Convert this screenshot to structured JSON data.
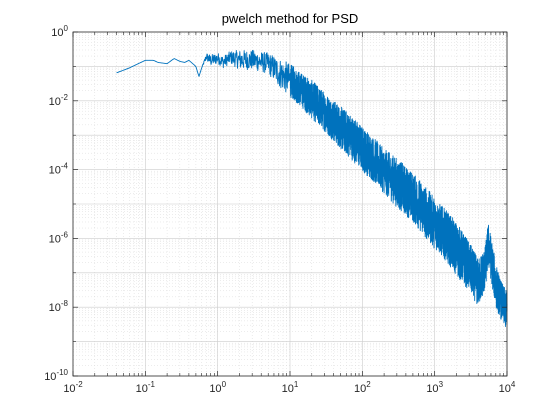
{
  "chart_data": {
    "type": "line",
    "title": "pwelch method for PSD",
    "xlabel": "",
    "ylabel": "",
    "x_scale": "log",
    "y_scale": "log",
    "xlim": [
      0.01,
      10000
    ],
    "ylim": [
      1e-10,
      1
    ],
    "grid": true,
    "minor_grid": true,
    "line_color": "#0072BD",
    "x_ticks": [
      {
        "base": "10",
        "exp": "-2"
      },
      {
        "base": "10",
        "exp": "-1"
      },
      {
        "base": "10",
        "exp": "0"
      },
      {
        "base": "10",
        "exp": "1"
      },
      {
        "base": "10",
        "exp": "2"
      },
      {
        "base": "10",
        "exp": "3"
      },
      {
        "base": "10",
        "exp": "4"
      }
    ],
    "y_ticks": [
      {
        "base": "10",
        "exp": "-10"
      },
      {
        "base": "10",
        "exp": "-8"
      },
      {
        "base": "10",
        "exp": "-6"
      },
      {
        "base": "10",
        "exp": "-4"
      },
      {
        "base": "10",
        "exp": "-2"
      },
      {
        "base": "10",
        "exp": "0"
      }
    ],
    "series": [
      {
        "x": [
          0.04,
          0.06,
          0.08,
          0.1,
          0.13,
          0.15,
          0.2,
          0.25,
          0.3,
          0.35,
          0.4,
          0.5,
          0.55,
          0.6,
          0.7,
          0.8,
          1.0,
          1.2,
          1.5,
          2,
          3,
          5,
          7,
          10,
          15,
          20,
          30,
          50,
          70,
          100,
          150,
          200,
          300,
          500,
          700,
          1000,
          1500,
          2000,
          3000,
          4000,
          5000,
          5500,
          6000,
          7000,
          8000,
          9000,
          10000
        ],
        "y": [
          0.065,
          0.09,
          0.12,
          0.15,
          0.15,
          0.13,
          0.12,
          0.17,
          0.14,
          0.13,
          0.15,
          0.1,
          0.05,
          0.09,
          0.2,
          0.17,
          0.18,
          0.12,
          0.2,
          0.15,
          0.18,
          0.12,
          0.07,
          0.045,
          0.02,
          0.012,
          0.006,
          0.002,
          0.001,
          0.0005,
          0.00022,
          0.00012,
          6e-05,
          2e-05,
          1e-05,
          4e-06,
          1.5e-06,
          7e-07,
          2e-07,
          6e-08,
          2e-07,
          8e-07,
          3e-07,
          4e-08,
          2e-08,
          1e-08,
          8e-09
        ],
        "y_lower": [
          0.065,
          0.09,
          0.12,
          0.15,
          0.15,
          0.13,
          0.12,
          0.17,
          0.14,
          0.13,
          0.15,
          0.1,
          0.05,
          0.09,
          0.15,
          0.1,
          0.12,
          0.09,
          0.12,
          0.08,
          0.08,
          0.06,
          0.025,
          0.013,
          0.006,
          0.003,
          0.0013,
          0.0004,
          0.0002,
          9e-05,
          4e-05,
          2e-05,
          8e-06,
          3e-06,
          1.2e-06,
          5e-07,
          2e-07,
          8e-08,
          3e-08,
          1e-08,
          3e-08,
          1.5e-07,
          6e-08,
          1e-08,
          5e-09,
          3e-09,
          2e-09
        ],
        "y_upper": [
          0.065,
          0.09,
          0.12,
          0.15,
          0.15,
          0.13,
          0.12,
          0.17,
          0.14,
          0.13,
          0.15,
          0.1,
          0.05,
          0.09,
          0.25,
          0.22,
          0.25,
          0.2,
          0.28,
          0.3,
          0.3,
          0.25,
          0.18,
          0.12,
          0.06,
          0.04,
          0.018,
          0.007,
          0.004,
          0.0018,
          0.0008,
          0.0004,
          0.00022,
          8e-05,
          4e-05,
          1.5e-05,
          6e-06,
          3e-06,
          8e-07,
          2.5e-07,
          6e-07,
          3e-06,
          1.2e-06,
          2e-07,
          7e-08,
          4e-08,
          3e-08
        ]
      }
    ]
  }
}
